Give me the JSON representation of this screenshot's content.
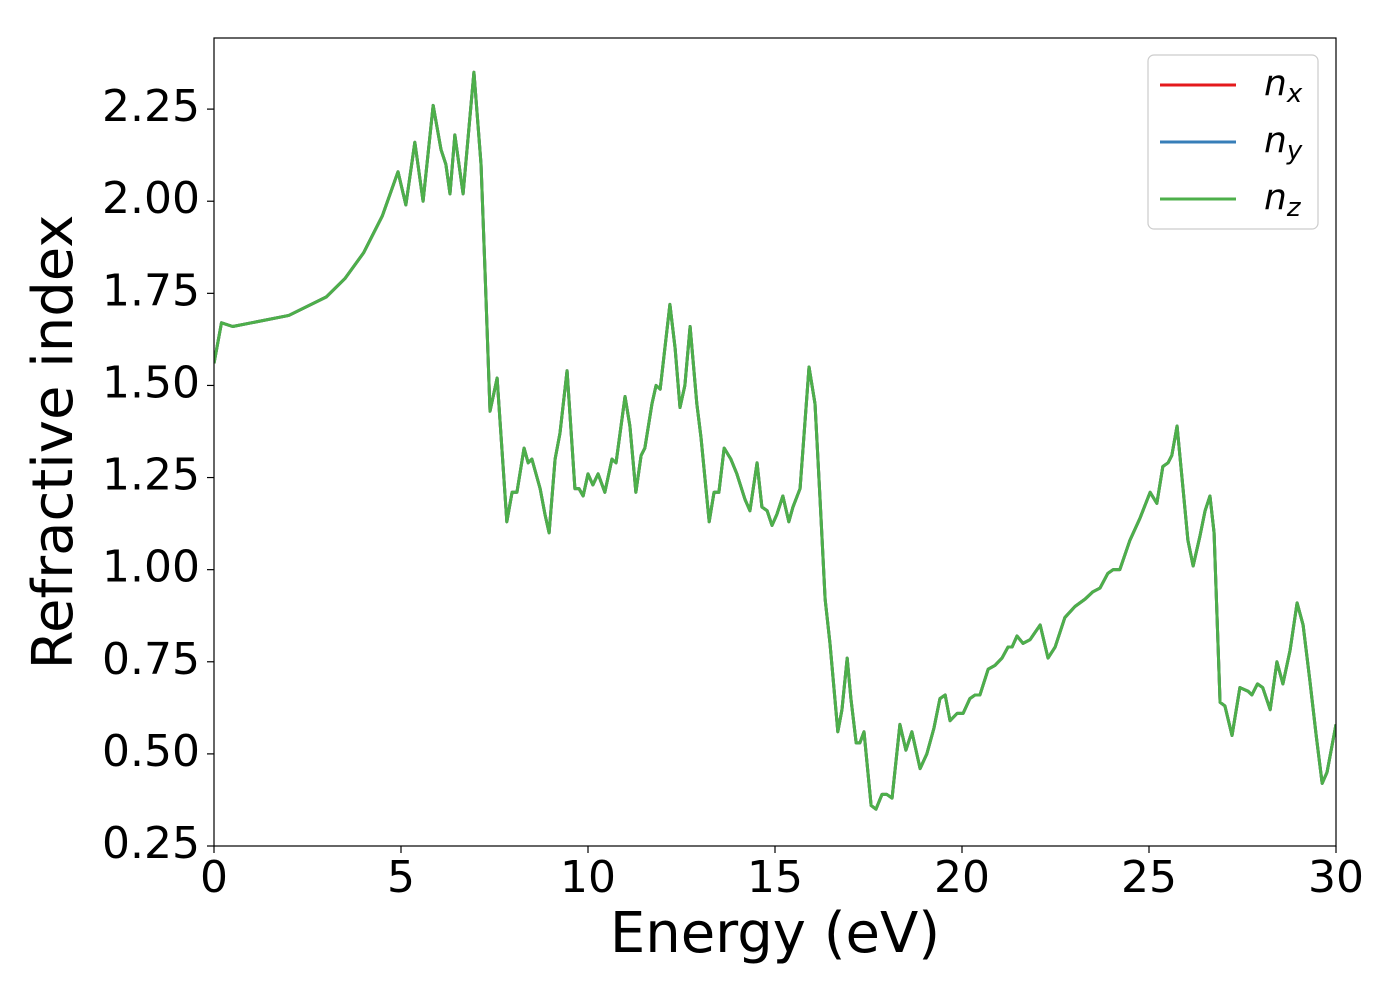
{
  "chart_data": {
    "type": "line",
    "x_label": "Energy (eV)",
    "y_label": "Refractive index",
    "xlim": [
      0,
      30
    ],
    "ylim": [
      0.25,
      2.443
    ],
    "xticks": [
      0,
      5,
      10,
      15,
      20,
      25,
      30
    ],
    "yticks": [
      0.25,
      {
        "value": 0.5,
        "label": "0.50"
      },
      0.75,
      {
        "value": 1.0,
        "label": "1.00"
      },
      1.25,
      {
        "value": 1.5,
        "label": "1.50"
      },
      1.75,
      {
        "value": 2.0,
        "label": "2.00"
      },
      2.25
    ],
    "legend": "upper right",
    "x": [
      0,
      0.2,
      0.5,
      1.0,
      2.0,
      3.0,
      3.5,
      4.0,
      4.5,
      4.92,
      5.13,
      5.37,
      5.59,
      5.86,
      6.07,
      6.2,
      6.31,
      6.44,
      6.66,
      6.95,
      7.14,
      7.25,
      7.38,
      7.57,
      7.83,
      7.97,
      8.1,
      8.29,
      8.4,
      8.5,
      8.72,
      8.85,
      8.96,
      9.12,
      9.25,
      9.44,
      9.65,
      9.76,
      9.87,
      10.0,
      10.13,
      10.27,
      10.45,
      10.64,
      10.75,
      10.99,
      11.12,
      11.28,
      11.42,
      11.52,
      11.71,
      11.82,
      11.93,
      12.19,
      12.33,
      12.46,
      12.59,
      12.73,
      12.91,
      13.02,
      13.24,
      13.37,
      13.5,
      13.64,
      13.82,
      13.98,
      14.2,
      14.33,
      14.52,
      14.65,
      14.79,
      14.92,
      15.05,
      15.21,
      15.37,
      15.48,
      15.67,
      15.91,
      16.07,
      16.2,
      16.34,
      16.47,
      16.68,
      16.79,
      16.93,
      17.03,
      17.17,
      17.27,
      17.38,
      17.57,
      17.7,
      17.86,
      17.99,
      18.13,
      18.34,
      18.5,
      18.66,
      18.88,
      19.06,
      19.25,
      19.41,
      19.55,
      19.68,
      19.87,
      20.03,
      20.21,
      20.35,
      20.48,
      20.7,
      20.88,
      21.07,
      21.23,
      21.34,
      21.47,
      21.63,
      21.82,
      22.09,
      22.3,
      22.49,
      22.75,
      23.02,
      23.29,
      23.5,
      23.69,
      23.9,
      24.04,
      24.22,
      24.49,
      24.76,
      25.03,
      25.21,
      25.37,
      25.51,
      25.61,
      25.75,
      25.91,
      26.04,
      26.18,
      26.36,
      26.5,
      26.63,
      26.74,
      26.9,
      27.03,
      27.22,
      27.43,
      27.65,
      27.75,
      27.9,
      28.04,
      28.24,
      28.42,
      28.58,
      28.77,
      28.96,
      29.12,
      29.3,
      29.47,
      29.63,
      29.76,
      30.0
    ],
    "series": [
      {
        "name": "n_x",
        "color": "#e41a1c",
        "values": [
          1.56,
          1.67,
          1.66,
          1.67,
          1.69,
          1.74,
          1.79,
          1.86,
          1.96,
          2.08,
          1.99,
          2.16,
          2.0,
          2.26,
          2.14,
          2.1,
          2.02,
          2.18,
          2.02,
          2.35,
          2.1,
          1.8,
          1.43,
          1.52,
          1.13,
          1.21,
          1.21,
          1.33,
          1.29,
          1.3,
          1.22,
          1.15,
          1.1,
          1.3,
          1.37,
          1.54,
          1.22,
          1.22,
          1.2,
          1.26,
          1.23,
          1.26,
          1.21,
          1.3,
          1.29,
          1.47,
          1.39,
          1.21,
          1.31,
          1.33,
          1.45,
          1.5,
          1.49,
          1.72,
          1.6,
          1.44,
          1.5,
          1.66,
          1.45,
          1.36,
          1.13,
          1.21,
          1.21,
          1.33,
          1.3,
          1.26,
          1.19,
          1.16,
          1.29,
          1.17,
          1.16,
          1.12,
          1.15,
          1.2,
          1.13,
          1.17,
          1.22,
          1.55,
          1.45,
          1.2,
          0.92,
          0.8,
          0.56,
          0.62,
          0.76,
          0.65,
          0.53,
          0.53,
          0.56,
          0.36,
          0.35,
          0.39,
          0.39,
          0.38,
          0.58,
          0.51,
          0.56,
          0.46,
          0.5,
          0.57,
          0.65,
          0.66,
          0.59,
          0.61,
          0.61,
          0.65,
          0.66,
          0.66,
          0.73,
          0.74,
          0.76,
          0.79,
          0.79,
          0.82,
          0.8,
          0.81,
          0.85,
          0.76,
          0.79,
          0.87,
          0.9,
          0.92,
          0.94,
          0.95,
          0.99,
          1.0,
          1.0,
          1.08,
          1.14,
          1.21,
          1.18,
          1.28,
          1.29,
          1.31,
          1.39,
          1.22,
          1.08,
          1.01,
          1.09,
          1.16,
          1.2,
          1.1,
          0.64,
          0.63,
          0.55,
          0.68,
          0.67,
          0.66,
          0.69,
          0.68,
          0.62,
          0.75,
          0.69,
          0.78,
          0.91,
          0.85,
          0.7,
          0.55,
          0.42,
          0.45,
          0.58
        ]
      },
      {
        "name": "n_y",
        "color": "#377eb8",
        "values": [
          1.56,
          1.67,
          1.66,
          1.67,
          1.69,
          1.74,
          1.79,
          1.86,
          1.96,
          2.08,
          1.99,
          2.16,
          2.0,
          2.26,
          2.14,
          2.1,
          2.02,
          2.18,
          2.02,
          2.35,
          2.1,
          1.8,
          1.43,
          1.52,
          1.13,
          1.21,
          1.21,
          1.33,
          1.29,
          1.3,
          1.22,
          1.15,
          1.1,
          1.3,
          1.37,
          1.54,
          1.22,
          1.22,
          1.2,
          1.26,
          1.23,
          1.26,
          1.21,
          1.3,
          1.29,
          1.47,
          1.39,
          1.21,
          1.31,
          1.33,
          1.45,
          1.5,
          1.49,
          1.72,
          1.6,
          1.44,
          1.5,
          1.66,
          1.45,
          1.36,
          1.13,
          1.21,
          1.21,
          1.33,
          1.3,
          1.26,
          1.19,
          1.16,
          1.29,
          1.17,
          1.16,
          1.12,
          1.15,
          1.2,
          1.13,
          1.17,
          1.22,
          1.55,
          1.45,
          1.2,
          0.92,
          0.8,
          0.56,
          0.62,
          0.76,
          0.65,
          0.53,
          0.53,
          0.56,
          0.36,
          0.35,
          0.39,
          0.39,
          0.38,
          0.58,
          0.51,
          0.56,
          0.46,
          0.5,
          0.57,
          0.65,
          0.66,
          0.59,
          0.61,
          0.61,
          0.65,
          0.66,
          0.66,
          0.73,
          0.74,
          0.76,
          0.79,
          0.79,
          0.82,
          0.8,
          0.81,
          0.85,
          0.76,
          0.79,
          0.87,
          0.9,
          0.92,
          0.94,
          0.95,
          0.99,
          1.0,
          1.0,
          1.08,
          1.14,
          1.21,
          1.18,
          1.28,
          1.29,
          1.31,
          1.39,
          1.22,
          1.08,
          1.01,
          1.09,
          1.16,
          1.2,
          1.1,
          0.64,
          0.63,
          0.55,
          0.68,
          0.67,
          0.66,
          0.69,
          0.68,
          0.62,
          0.75,
          0.69,
          0.78,
          0.91,
          0.85,
          0.7,
          0.55,
          0.42,
          0.45,
          0.58
        ]
      },
      {
        "name": "n_z",
        "color": "#4daf4a",
        "values": [
          1.56,
          1.67,
          1.66,
          1.67,
          1.69,
          1.74,
          1.79,
          1.86,
          1.96,
          2.08,
          1.99,
          2.16,
          2.0,
          2.26,
          2.14,
          2.1,
          2.02,
          2.18,
          2.02,
          2.35,
          2.1,
          1.8,
          1.43,
          1.52,
          1.13,
          1.21,
          1.21,
          1.33,
          1.29,
          1.3,
          1.22,
          1.15,
          1.1,
          1.3,
          1.37,
          1.54,
          1.22,
          1.22,
          1.2,
          1.26,
          1.23,
          1.26,
          1.21,
          1.3,
          1.29,
          1.47,
          1.39,
          1.21,
          1.31,
          1.33,
          1.45,
          1.5,
          1.49,
          1.72,
          1.6,
          1.44,
          1.5,
          1.66,
          1.45,
          1.36,
          1.13,
          1.21,
          1.21,
          1.33,
          1.3,
          1.26,
          1.19,
          1.16,
          1.29,
          1.17,
          1.16,
          1.12,
          1.15,
          1.2,
          1.13,
          1.17,
          1.22,
          1.55,
          1.45,
          1.2,
          0.92,
          0.8,
          0.56,
          0.62,
          0.76,
          0.65,
          0.53,
          0.53,
          0.56,
          0.36,
          0.35,
          0.39,
          0.39,
          0.38,
          0.58,
          0.51,
          0.56,
          0.46,
          0.5,
          0.57,
          0.65,
          0.66,
          0.59,
          0.61,
          0.61,
          0.65,
          0.66,
          0.66,
          0.73,
          0.74,
          0.76,
          0.79,
          0.79,
          0.82,
          0.8,
          0.81,
          0.85,
          0.76,
          0.79,
          0.87,
          0.9,
          0.92,
          0.94,
          0.95,
          0.99,
          1.0,
          1.0,
          1.08,
          1.14,
          1.21,
          1.18,
          1.28,
          1.29,
          1.31,
          1.39,
          1.22,
          1.08,
          1.01,
          1.09,
          1.16,
          1.2,
          1.1,
          0.64,
          0.63,
          0.55,
          0.68,
          0.67,
          0.66,
          0.69,
          0.68,
          0.62,
          0.75,
          0.69,
          0.78,
          0.91,
          0.85,
          0.7,
          0.55,
          0.42,
          0.45,
          0.58
        ]
      }
    ]
  }
}
